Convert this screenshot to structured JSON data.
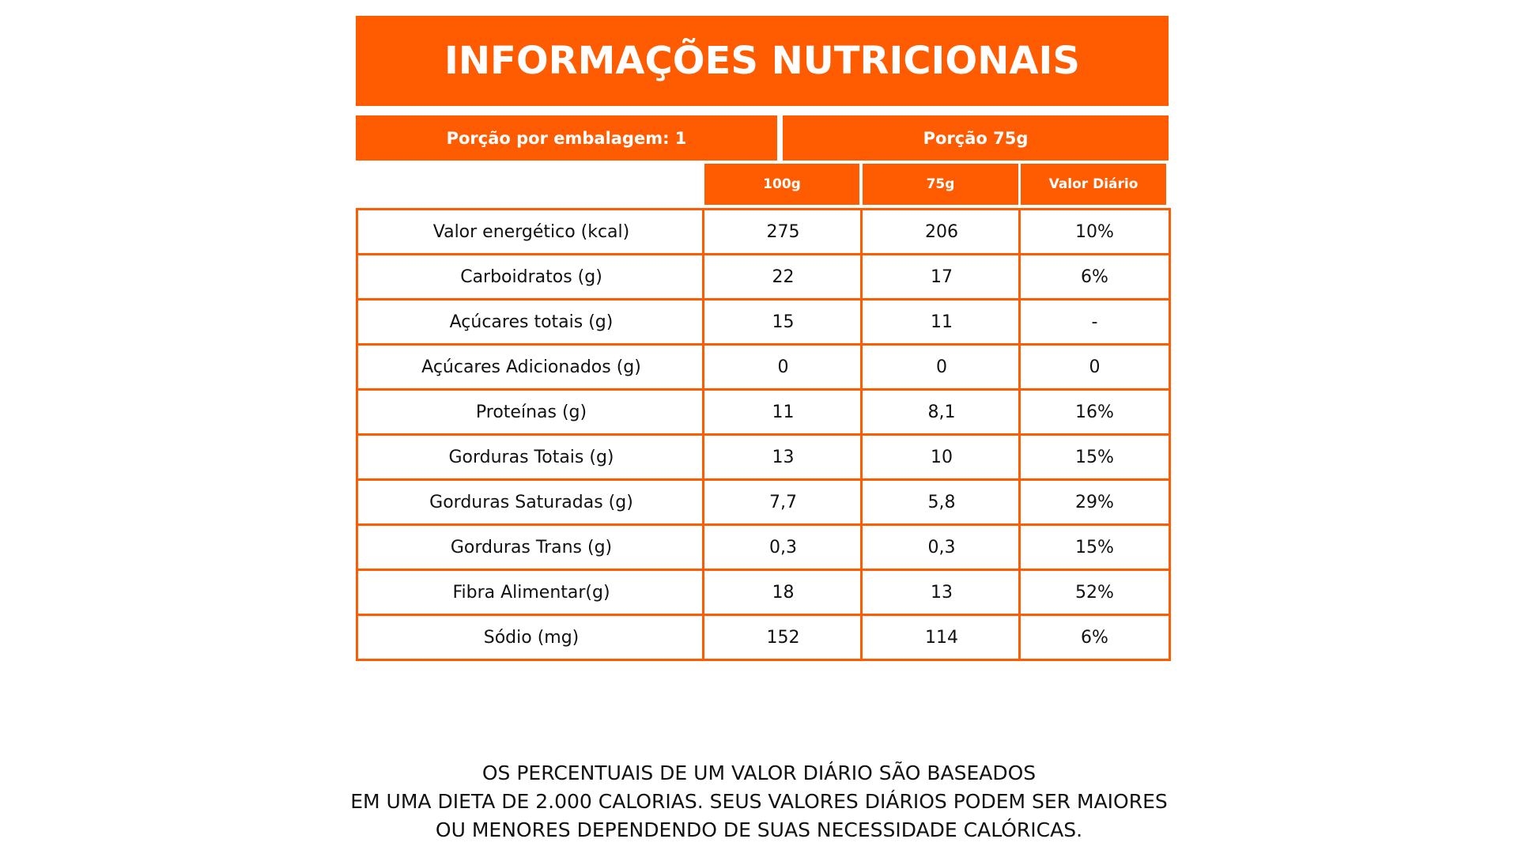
{
  "title": "INFORMAÇÕES NUTRICIONAIS",
  "portion": {
    "per_package": "Porção por embalagem: 1",
    "size": "Porção  75g"
  },
  "columns": [
    "100g",
    "75g",
    "Valor Diário"
  ],
  "rows": [
    [
      "Valor energético (kcal)",
      "275",
      "206",
      "10%"
    ],
    [
      "Carboidratos (g)",
      "22",
      "17",
      "6%"
    ],
    [
      "Açúcares totais (g)",
      "15",
      "11",
      "-"
    ],
    [
      "Açúcares Adicionados (g)",
      "0",
      "0",
      "0"
    ],
    [
      "Proteínas (g)",
      "11",
      "8,1",
      "16%"
    ],
    [
      "Gorduras Totais (g)",
      "13",
      "10",
      "15%"
    ],
    [
      "Gorduras Saturadas (g)",
      "7,7",
      "5,8",
      "29%"
    ],
    [
      "Gorduras Trans (g)",
      "0,3",
      "0,3",
      "15%"
    ],
    [
      "Fibra Alimentar(g)",
      "18",
      "13",
      "52%"
    ],
    [
      "Sódio (mg)",
      "152",
      "114",
      "6%"
    ]
  ],
  "footer": [
    "OS PERCENTUAIS DE UM VALOR DIÁRIO SÃO BASEADOS",
    "EM UMA DIETA DE 2.000 CALORIAS. SEUS VALORES DIÁRIOS PODEM SER MAIORES",
    "OU MENORES DEPENDENDO DE SUAS NECESSIDADE CALÓRICAS."
  ]
}
